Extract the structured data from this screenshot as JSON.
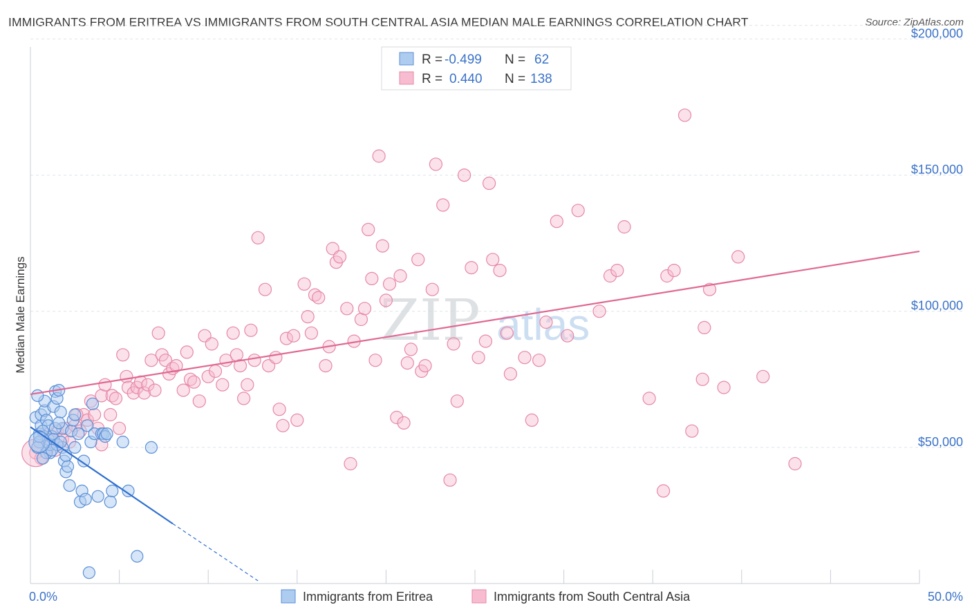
{
  "title": "IMMIGRANTS FROM ERITREA VS IMMIGRANTS FROM SOUTH CENTRAL ASIA MEDIAN MALE EARNINGS CORRELATION CHART",
  "source": "Source: ZipAtlas.com",
  "watermark": {
    "zip": "ZIP",
    "atlas": "atlas"
  },
  "colors": {
    "eritrea_fill": "#aecbf0",
    "eritrea_stroke": "#5a8fd6",
    "eritrea_line": "#2e6fd0",
    "sca_fill": "#f7bcd0",
    "sca_stroke": "#e687a6",
    "sca_line": "#e06892",
    "tick_color": "#3a72c8",
    "grid": "#dde3ea"
  },
  "legend": {
    "rows": [
      {
        "r_label": "R =",
        "r_value": "-0.499",
        "n_label": "N =",
        "n_value": "62"
      },
      {
        "r_label": "R =",
        "r_value": "0.440",
        "n_label": "N =",
        "n_value": "138"
      }
    ]
  },
  "chart_data": {
    "type": "scatter",
    "title": "IMMIGRANTS FROM ERITREA VS IMMIGRANTS FROM SOUTH CENTRAL ASIA MEDIAN MALE EARNINGS CORRELATION CHART",
    "xlabel": "",
    "ylabel": "Median Male Earnings",
    "xlim": [
      0,
      50
    ],
    "ylim": [
      0,
      210000
    ],
    "x_tick_labels": [
      "0.0%",
      "50.0%"
    ],
    "y_ticks": [
      50000,
      100000,
      150000,
      200000
    ],
    "y_tick_labels": [
      "$50,000",
      "$100,000",
      "$150,000",
      "$200,000"
    ],
    "grid": true,
    "legend_position": "top-center",
    "series": [
      {
        "name": "Immigrants from Eritrea",
        "trend": {
          "x_start": 0,
          "y_start": 57500,
          "x_solid_end": 8,
          "y_solid_end": 22000,
          "x_dash_end": 12.8,
          "y_dash_end": 1000
        },
        "points": [
          [
            0.3,
            61000
          ],
          [
            0.5,
            55000
          ],
          [
            0.5,
            52000
          ],
          [
            0.6,
            58000
          ],
          [
            0.4,
            50000
          ],
          [
            0.6,
            62000
          ],
          [
            0.8,
            63500
          ],
          [
            0.8,
            67000
          ],
          [
            0.9,
            60000
          ],
          [
            1.0,
            53000
          ],
          [
            1.0,
            58000
          ],
          [
            1.1,
            48000
          ],
          [
            1.2,
            54000
          ],
          [
            1.3,
            65000
          ],
          [
            1.4,
            70500
          ],
          [
            1.5,
            68000
          ],
          [
            1.6,
            71000
          ],
          [
            1.7,
            63000
          ],
          [
            1.8,
            57000
          ],
          [
            1.8,
            50000
          ],
          [
            1.9,
            45000
          ],
          [
            2.0,
            41000
          ],
          [
            2.1,
            43000
          ],
          [
            2.2,
            36000
          ],
          [
            2.3,
            56000
          ],
          [
            2.4,
            60000
          ],
          [
            2.5,
            50000
          ],
          [
            2.7,
            55000
          ],
          [
            2.8,
            30000
          ],
          [
            2.9,
            34000
          ],
          [
            3.0,
            45000
          ],
          [
            3.1,
            31000
          ],
          [
            3.2,
            58000
          ],
          [
            3.4,
            52000
          ],
          [
            3.5,
            66000
          ],
          [
            3.6,
            55000
          ],
          [
            3.8,
            32000
          ],
          [
            4.0,
            55000
          ],
          [
            4.1,
            55000
          ],
          [
            4.2,
            54000
          ],
          [
            4.3,
            55000
          ],
          [
            4.5,
            30000
          ],
          [
            4.6,
            34000
          ],
          [
            5.2,
            52000
          ],
          [
            5.5,
            34000
          ],
          [
            6.0,
            10000
          ],
          [
            6.8,
            50000
          ],
          [
            3.3,
            4000
          ],
          [
            0.7,
            56000
          ],
          [
            0.9,
            48000
          ],
          [
            1.1,
            51000
          ],
          [
            1.3,
            53000
          ],
          [
            1.5,
            51000
          ],
          [
            1.7,
            52000
          ],
          [
            0.5,
            54000
          ],
          [
            0.7,
            46000
          ],
          [
            1.2,
            49000
          ],
          [
            1.4,
            57000
          ],
          [
            2.0,
            47000
          ],
          [
            1.6,
            59000
          ],
          [
            0.4,
            69000
          ],
          [
            2.5,
            62000
          ]
        ]
      },
      {
        "name": "Immigrants from South Central Asia",
        "trend": {
          "x_start": 0,
          "y_start": 69500,
          "x_end": 50,
          "y_end": 122000
        },
        "points": [
          [
            0.3,
            48000
          ],
          [
            0.5,
            52000
          ],
          [
            0.8,
            55000
          ],
          [
            1.0,
            50000
          ],
          [
            1.2,
            54000
          ],
          [
            1.5,
            56000
          ],
          [
            1.8,
            53000
          ],
          [
            2.0,
            57000
          ],
          [
            2.2,
            52000
          ],
          [
            2.5,
            58000
          ],
          [
            2.8,
            56000
          ],
          [
            3.0,
            62000
          ],
          [
            3.2,
            60000
          ],
          [
            3.4,
            67000
          ],
          [
            3.6,
            62000
          ],
          [
            3.8,
            57000
          ],
          [
            4.0,
            69000
          ],
          [
            4.2,
            73000
          ],
          [
            4.5,
            62000
          ],
          [
            4.6,
            69000
          ],
          [
            4.8,
            68000
          ],
          [
            5.0,
            57000
          ],
          [
            5.2,
            84000
          ],
          [
            5.4,
            76000
          ],
          [
            5.5,
            72000
          ],
          [
            5.8,
            70000
          ],
          [
            6.0,
            72000
          ],
          [
            6.2,
            74000
          ],
          [
            6.4,
            70000
          ],
          [
            6.6,
            73000
          ],
          [
            6.8,
            82000
          ],
          [
            7.0,
            71000
          ],
          [
            7.2,
            92000
          ],
          [
            7.4,
            84000
          ],
          [
            7.6,
            82000
          ],
          [
            7.8,
            77000
          ],
          [
            8.0,
            79000
          ],
          [
            8.2,
            80000
          ],
          [
            8.6,
            71000
          ],
          [
            8.8,
            85000
          ],
          [
            9.0,
            75000
          ],
          [
            9.2,
            74000
          ],
          [
            9.5,
            67000
          ],
          [
            9.8,
            91000
          ],
          [
            10.0,
            76000
          ],
          [
            10.2,
            88000
          ],
          [
            10.4,
            78000
          ],
          [
            10.8,
            73000
          ],
          [
            11.0,
            82000
          ],
          [
            11.4,
            92000
          ],
          [
            11.6,
            84000
          ],
          [
            11.8,
            80000
          ],
          [
            12.0,
            68000
          ],
          [
            12.2,
            73000
          ],
          [
            12.4,
            93000
          ],
          [
            12.6,
            82000
          ],
          [
            12.8,
            127000
          ],
          [
            13.2,
            108000
          ],
          [
            13.4,
            80000
          ],
          [
            13.8,
            83000
          ],
          [
            14.0,
            64000
          ],
          [
            14.2,
            58000
          ],
          [
            14.4,
            90000
          ],
          [
            14.8,
            91000
          ],
          [
            15.0,
            60000
          ],
          [
            15.4,
            110000
          ],
          [
            15.6,
            98000
          ],
          [
            15.8,
            92000
          ],
          [
            16.0,
            106000
          ],
          [
            16.2,
            105000
          ],
          [
            16.6,
            80000
          ],
          [
            16.8,
            87000
          ],
          [
            17.0,
            123000
          ],
          [
            17.2,
            118000
          ],
          [
            17.4,
            120000
          ],
          [
            17.8,
            101000
          ],
          [
            18.0,
            44000
          ],
          [
            18.2,
            89000
          ],
          [
            18.6,
            97000
          ],
          [
            18.8,
            101000
          ],
          [
            19.0,
            130000
          ],
          [
            19.2,
            112000
          ],
          [
            19.4,
            82000
          ],
          [
            19.6,
            157000
          ],
          [
            19.8,
            124000
          ],
          [
            20.0,
            104000
          ],
          [
            20.2,
            110000
          ],
          [
            20.6,
            61000
          ],
          [
            20.8,
            113000
          ],
          [
            21.0,
            59000
          ],
          [
            21.2,
            81000
          ],
          [
            21.4,
            86000
          ],
          [
            21.8,
            119000
          ],
          [
            22.0,
            78000
          ],
          [
            22.2,
            80000
          ],
          [
            22.6,
            108000
          ],
          [
            22.8,
            154000
          ],
          [
            23.2,
            139000
          ],
          [
            23.6,
            38000
          ],
          [
            23.8,
            88000
          ],
          [
            24.0,
            67000
          ],
          [
            24.4,
            150000
          ],
          [
            24.8,
            116000
          ],
          [
            25.2,
            83000
          ],
          [
            25.6,
            89000
          ],
          [
            25.8,
            147000
          ],
          [
            26.0,
            119000
          ],
          [
            26.4,
            115000
          ],
          [
            26.8,
            92000
          ],
          [
            27.0,
            77000
          ],
          [
            27.8,
            83000
          ],
          [
            28.2,
            60000
          ],
          [
            28.6,
            82000
          ],
          [
            29.0,
            96000
          ],
          [
            29.6,
            133000
          ],
          [
            30.2,
            91000
          ],
          [
            30.8,
            137000
          ],
          [
            32.0,
            100000
          ],
          [
            32.6,
            113000
          ],
          [
            33.0,
            115000
          ],
          [
            33.4,
            131000
          ],
          [
            34.8,
            68000
          ],
          [
            35.6,
            34000
          ],
          [
            35.8,
            113000
          ],
          [
            36.2,
            115000
          ],
          [
            36.8,
            172000
          ],
          [
            37.2,
            56000
          ],
          [
            37.8,
            75000
          ],
          [
            37.9,
            94000
          ],
          [
            38.2,
            108000
          ],
          [
            39.0,
            72000
          ],
          [
            39.8,
            120000
          ],
          [
            41.2,
            76000
          ],
          [
            43.0,
            44000
          ],
          [
            0.6,
            46000
          ],
          [
            1.4,
            49000
          ],
          [
            2.6,
            62000
          ],
          [
            4.0,
            51000
          ]
        ]
      }
    ]
  },
  "bottom_legend": [
    {
      "label": "Immigrants from Eritrea"
    },
    {
      "label": "Immigrants from South Central Asia"
    }
  ]
}
